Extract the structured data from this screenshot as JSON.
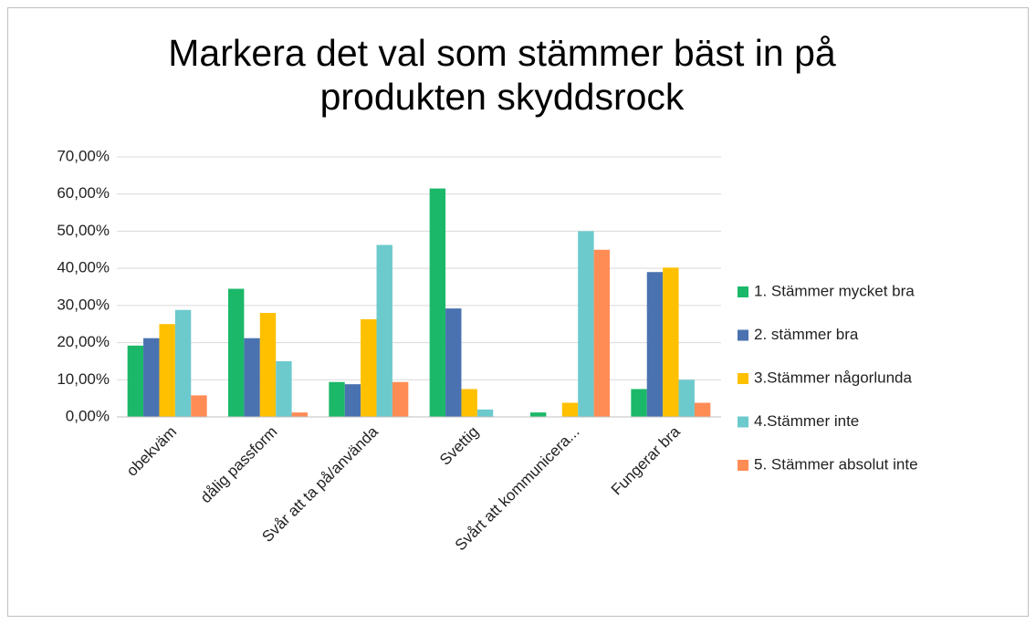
{
  "chart_data": {
    "type": "bar",
    "title": "Markera det val som stämmer bäst in på produkten skyddsrock",
    "categories": [
      "obekväm",
      "dålig passform",
      "Svår att ta på/använda",
      "Svettig",
      "Svårt att kommunicera...",
      "Fungerar bra"
    ],
    "series": [
      {
        "name": "1. Stämmer mycket bra",
        "color": "#1cb86a",
        "values": [
          19.2,
          34.5,
          9.4,
          61.5,
          1.2,
          7.5
        ]
      },
      {
        "name": "2. stämmer bra",
        "color": "#4a72b0",
        "values": [
          21.2,
          21.2,
          8.8,
          29.2,
          0,
          39
        ]
      },
      {
        "name": "3.Stämmer någorlunda",
        "color": "#ffc000",
        "values": [
          25,
          28,
          26.3,
          7.5,
          3.8,
          40.2
        ]
      },
      {
        "name": "4.Stämmer inte",
        "color": "#6ccacd",
        "values": [
          28.8,
          15,
          46.3,
          2,
          50,
          10
        ]
      },
      {
        "name": "5. Stämmer absolut inte",
        "color": "#ff8c55",
        "values": [
          5.8,
          1.2,
          9.4,
          0,
          45,
          3.8
        ]
      }
    ],
    "ylim": [
      0,
      70
    ],
    "yticks": [
      {
        "value": 0,
        "label": "0,00%"
      },
      {
        "value": 10,
        "label": "10,00%"
      },
      {
        "value": 20,
        "label": "20,00%"
      },
      {
        "value": 30,
        "label": "30,00%"
      },
      {
        "value": 40,
        "label": "40,00%"
      },
      {
        "value": 50,
        "label": "50,00%"
      },
      {
        "value": 60,
        "label": "60,00%"
      },
      {
        "value": 70,
        "label": "70,00%"
      }
    ],
    "grid": true,
    "legend": "right"
  }
}
